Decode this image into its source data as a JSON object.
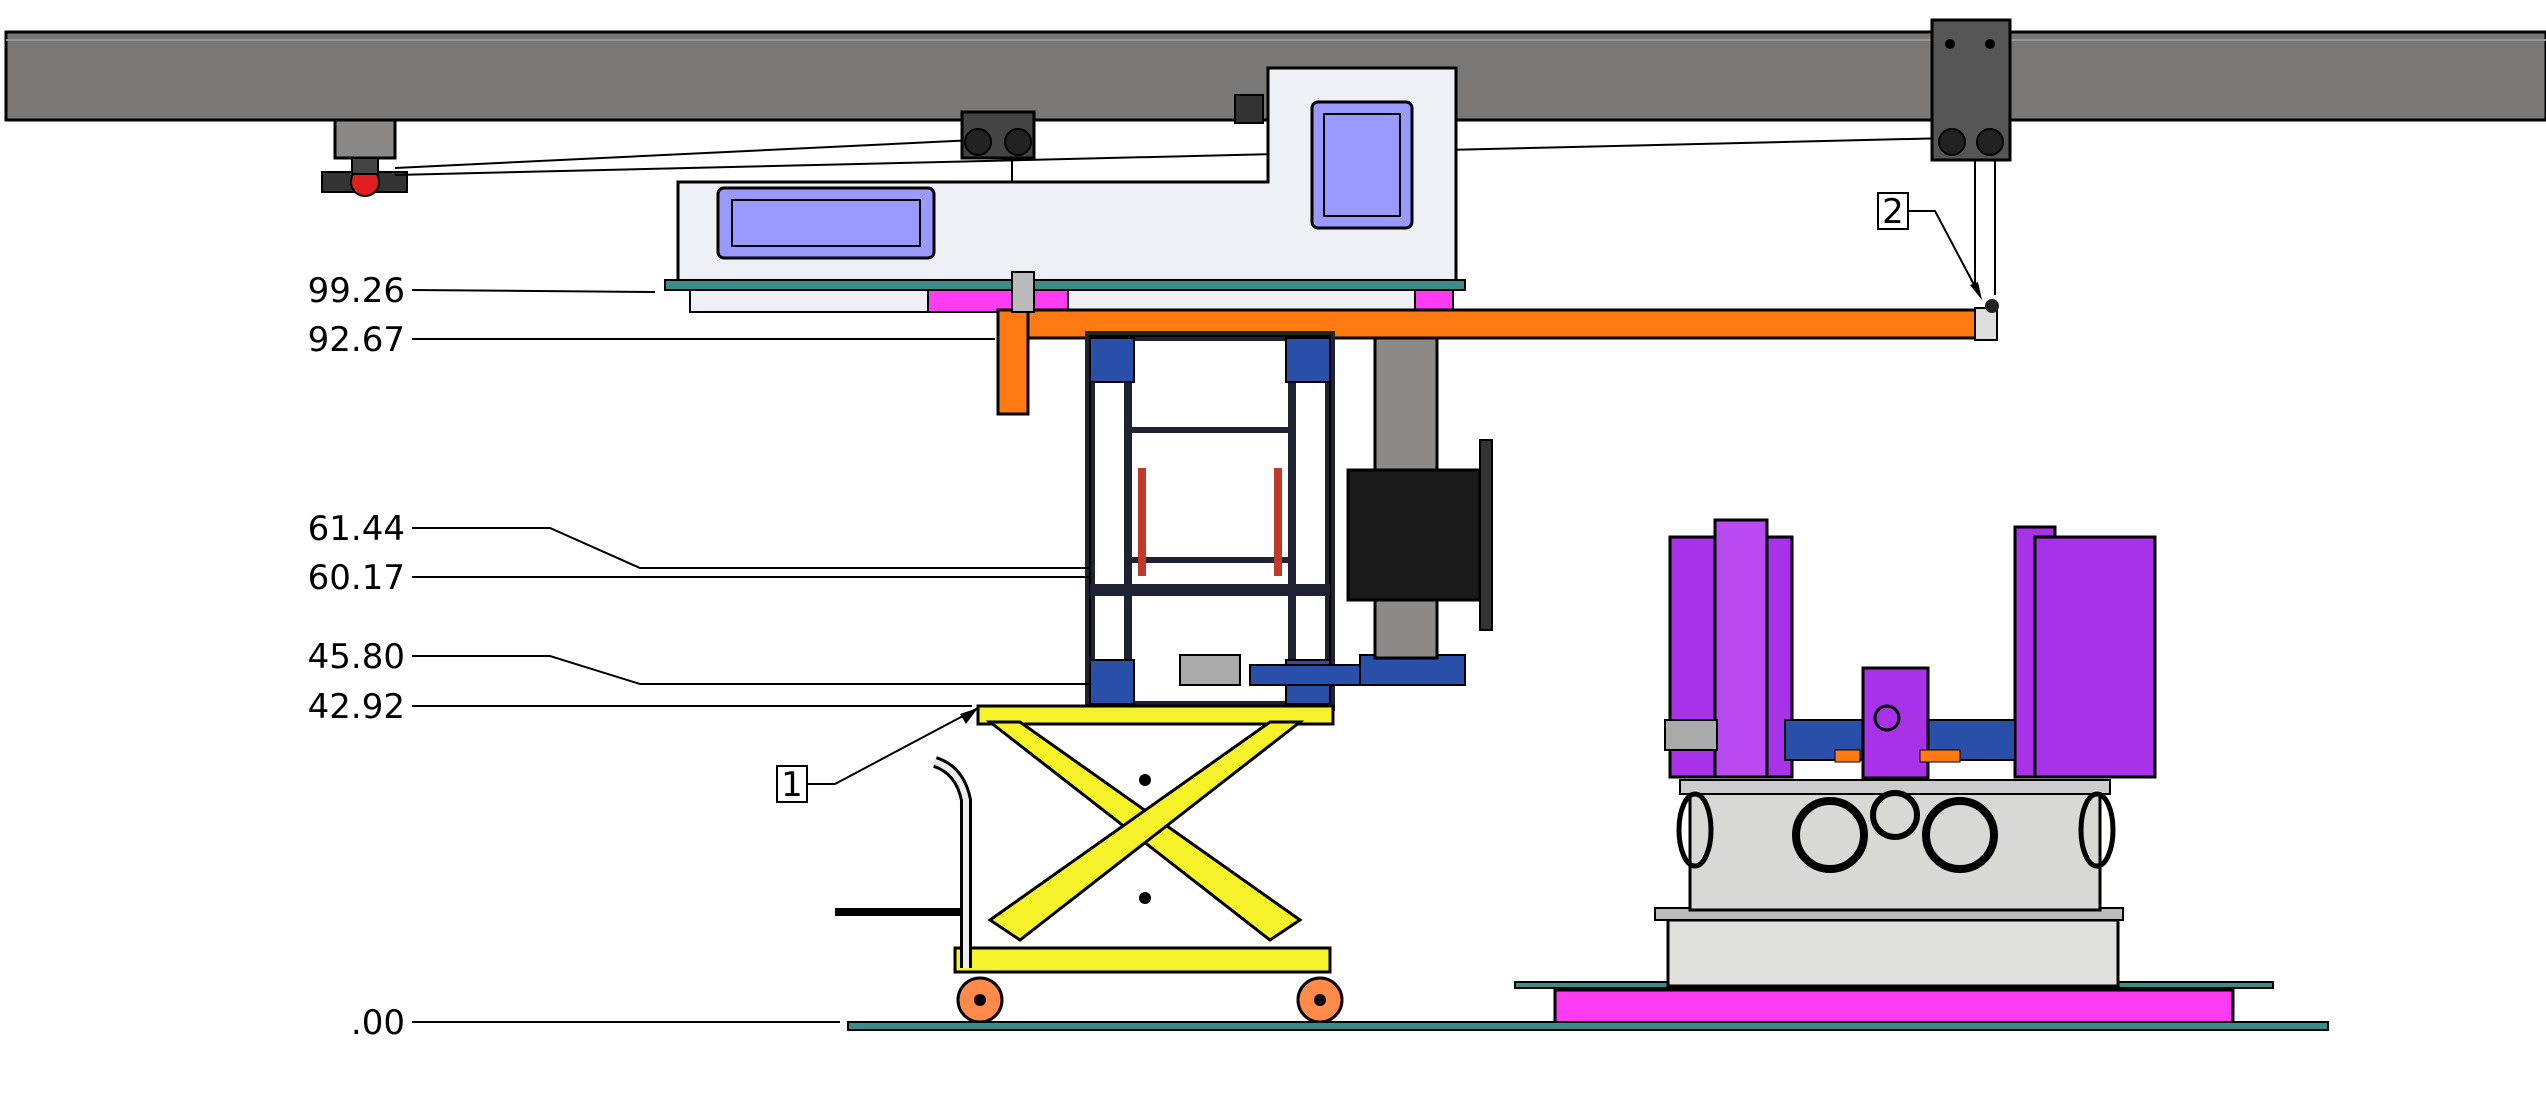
{
  "elevations": [
    {
      "label": "99.26"
    },
    {
      "label": "92.67"
    },
    {
      "label": "61.44"
    },
    {
      "label": "60.17"
    },
    {
      "label": "45.80"
    },
    {
      "label": "42.92"
    },
    {
      "label": ".00"
    }
  ],
  "callouts": [
    {
      "label": "1"
    },
    {
      "label": "2"
    }
  ],
  "colors": {
    "beam": "#7a7876",
    "white_part": "#e8ecf4",
    "window": "#9a99ff",
    "orange": "#ff7a12",
    "magenta": "#ff3cf2",
    "yellow": "#f6f22a",
    "dark_frame": "#1e2233",
    "blue_bracket": "#2a4fa8",
    "purple": "#a832e8",
    "drum": "#d8d8d4",
    "teal_floor": "#3e8c8a"
  }
}
